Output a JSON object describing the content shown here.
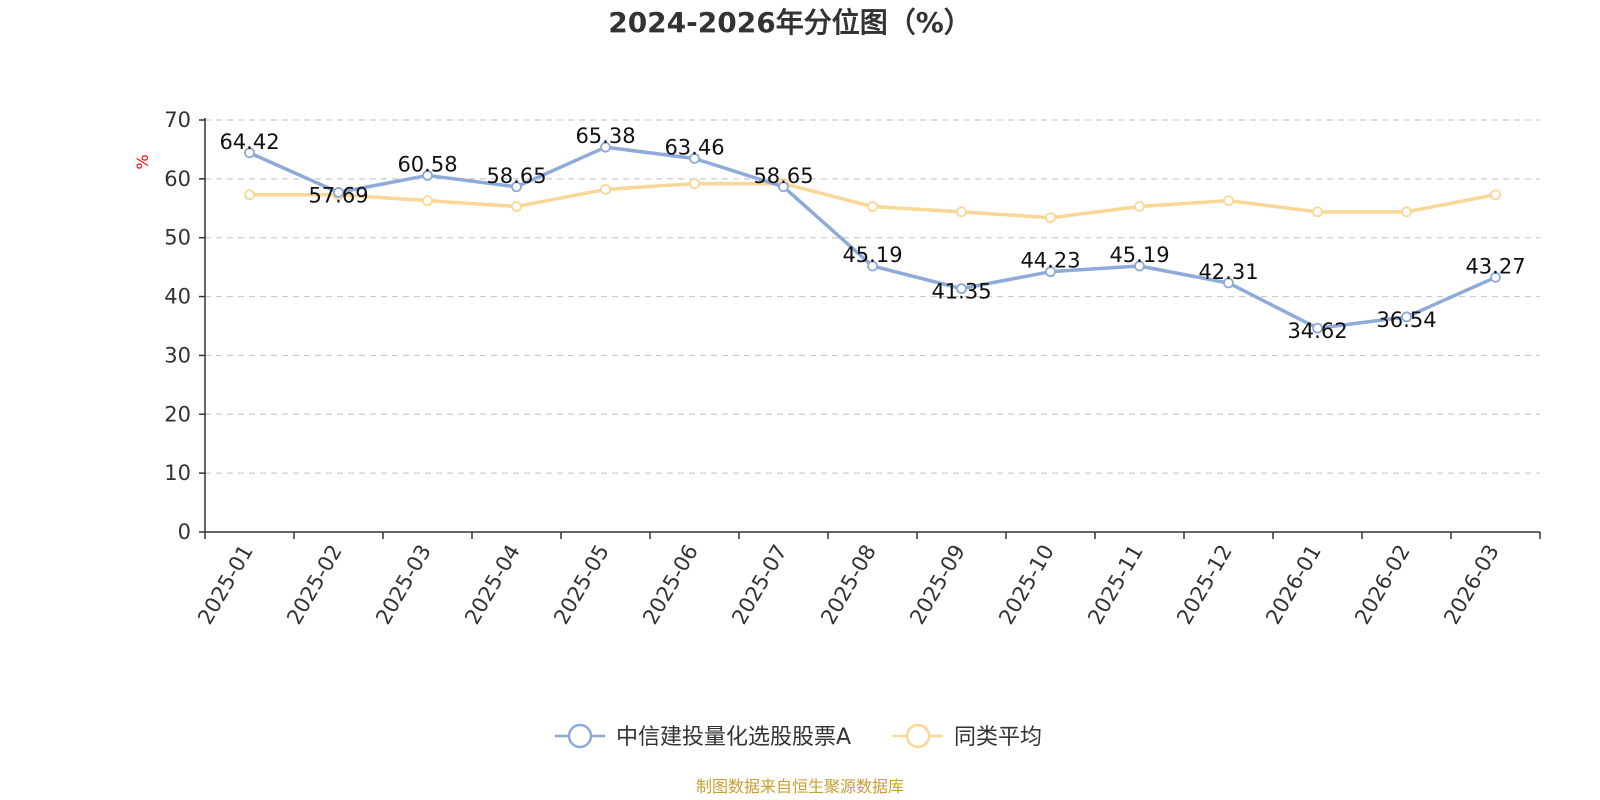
{
  "chart_data": {
    "type": "line",
    "title": "2024-2026年分位图（%）",
    "ylabel": "%",
    "xlabel": "",
    "ylim": [
      0,
      70
    ],
    "yticks": [
      0,
      10,
      20,
      30,
      40,
      50,
      60,
      70
    ],
    "grid": true,
    "legend_position": "bottom-center",
    "categories": [
      "2025-01",
      "2025-02",
      "2025-03",
      "2025-04",
      "2025-05",
      "2025-06",
      "2025-07",
      "2025-08",
      "2025-09",
      "2025-10",
      "2025-11",
      "2025-12",
      "2026-01",
      "2026-02",
      "2026-03"
    ],
    "series": [
      {
        "name": "中信建投量化选股股票A",
        "color": "#8eaad8",
        "show_labels": true,
        "values": [
          64.42,
          57.69,
          60.58,
          58.65,
          65.38,
          63.46,
          58.65,
          45.19,
          41.35,
          44.23,
          45.19,
          42.31,
          34.62,
          36.54,
          43.27
        ]
      },
      {
        "name": "同类平均",
        "color": "#fad796",
        "show_labels": false,
        "values": [
          57.3,
          57.3,
          56.3,
          55.3,
          58.2,
          59.2,
          59.2,
          55.3,
          54.4,
          53.4,
          55.3,
          56.3,
          54.4,
          54.4,
          57.3
        ]
      }
    ],
    "source": "制图数据来自恒生聚源数据库"
  }
}
